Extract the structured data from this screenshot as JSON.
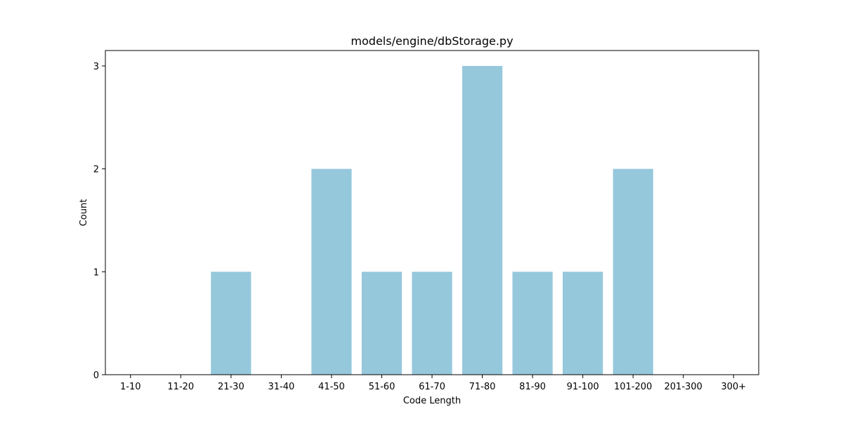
{
  "chart_data": {
    "type": "bar",
    "title": "models/engine/dbStorage.py",
    "xlabel": "Code Length",
    "ylabel": "Count",
    "categories": [
      "1-10",
      "11-20",
      "21-30",
      "31-40",
      "41-50",
      "51-60",
      "61-70",
      "71-80",
      "81-90",
      "91-100",
      "101-200",
      "201-300",
      "300+"
    ],
    "values": [
      0,
      0,
      1,
      0,
      2,
      1,
      1,
      3,
      1,
      1,
      2,
      0,
      0
    ],
    "ylim": [
      0,
      3.15
    ],
    "yticks": [
      0,
      1,
      2,
      3
    ],
    "bar_color": "#96c8dc",
    "grid": false,
    "legend": "none"
  }
}
